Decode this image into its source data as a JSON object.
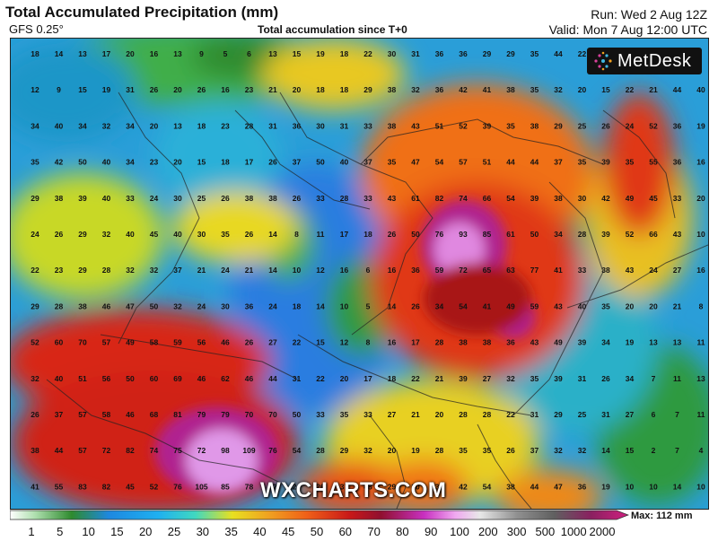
{
  "header": {
    "title": "Total Accumulated Precipitation (mm)",
    "model": "GFS 0.25°",
    "subtitle": "Total accumulation since T+0",
    "run": "Run: Wed 2 Aug 12Z",
    "valid": "Valid: Mon 7 Aug 12:00 UTC"
  },
  "logo": {
    "text": "MetDesk"
  },
  "watermark": "WXCHARTS.COM",
  "legend": {
    "ticks": [
      "1",
      "5",
      "10",
      "15",
      "20",
      "25",
      "30",
      "35",
      "40",
      "45",
      "50",
      "60",
      "70",
      "80",
      "90",
      "100",
      "200",
      "300",
      "500",
      "1000",
      "2000"
    ],
    "max_label": "Max: 112 mm"
  },
  "grid_values": [
    [
      "18",
      "14",
      "13",
      "17",
      "20",
      "16",
      "13",
      "9",
      "5",
      "6",
      "13",
      "15",
      "19",
      "18",
      "22",
      "30",
      "31",
      "36",
      "36",
      "29",
      "29",
      "35",
      "44",
      "22",
      "",
      "",
      ""
    ],
    [
      "12",
      "9",
      "15",
      "19",
      "31",
      "26",
      "20",
      "26",
      "16",
      "23",
      "21",
      "20",
      "18",
      "18",
      "29",
      "38",
      "32",
      "36",
      "42",
      "41",
      "38",
      "35",
      "32",
      "20",
      "15",
      "22",
      "21",
      "44",
      "40"
    ],
    [
      "34",
      "40",
      "34",
      "32",
      "34",
      "20",
      "13",
      "18",
      "23",
      "28",
      "31",
      "36",
      "30",
      "31",
      "33",
      "38",
      "43",
      "51",
      "52",
      "39",
      "35",
      "38",
      "29",
      "25",
      "26",
      "24",
      "52",
      "36",
      "19"
    ],
    [
      "35",
      "42",
      "50",
      "40",
      "34",
      "23",
      "20",
      "15",
      "18",
      "17",
      "26",
      "37",
      "50",
      "40",
      "37",
      "35",
      "47",
      "54",
      "57",
      "51",
      "44",
      "44",
      "37",
      "35",
      "39",
      "35",
      "55",
      "36",
      "16"
    ],
    [
      "29",
      "38",
      "39",
      "40",
      "33",
      "24",
      "30",
      "25",
      "26",
      "38",
      "38",
      "26",
      "33",
      "28",
      "33",
      "43",
      "61",
      "82",
      "74",
      "66",
      "54",
      "39",
      "38",
      "30",
      "42",
      "49",
      "45",
      "33",
      "20"
    ],
    [
      "24",
      "26",
      "29",
      "32",
      "40",
      "45",
      "40",
      "30",
      "35",
      "26",
      "14",
      "8",
      "11",
      "17",
      "18",
      "26",
      "50",
      "76",
      "93",
      "85",
      "61",
      "50",
      "34",
      "28",
      "39",
      "52",
      "66",
      "43",
      "10"
    ],
    [
      "22",
      "23",
      "29",
      "28",
      "32",
      "32",
      "37",
      "21",
      "24",
      "21",
      "14",
      "10",
      "12",
      "16",
      "6",
      "16",
      "36",
      "59",
      "72",
      "65",
      "63",
      "77",
      "41",
      "33",
      "38",
      "43",
      "24",
      "27",
      "16"
    ],
    [
      "29",
      "28",
      "38",
      "46",
      "47",
      "50",
      "32",
      "24",
      "30",
      "36",
      "24",
      "18",
      "14",
      "10",
      "5",
      "14",
      "26",
      "34",
      "54",
      "41",
      "49",
      "59",
      "43",
      "40",
      "35",
      "20",
      "20",
      "21",
      "8"
    ],
    [
      "52",
      "60",
      "70",
      "57",
      "49",
      "58",
      "59",
      "56",
      "46",
      "26",
      "27",
      "22",
      "15",
      "12",
      "8",
      "16",
      "17",
      "28",
      "38",
      "38",
      "36",
      "43",
      "49",
      "39",
      "34",
      "19",
      "13",
      "13",
      "11"
    ],
    [
      "32",
      "40",
      "51",
      "56",
      "50",
      "60",
      "69",
      "46",
      "62",
      "46",
      "44",
      "31",
      "22",
      "20",
      "17",
      "18",
      "22",
      "21",
      "39",
      "27",
      "32",
      "35",
      "39",
      "31",
      "26",
      "34",
      "7",
      "11",
      "13"
    ],
    [
      "26",
      "37",
      "57",
      "58",
      "46",
      "68",
      "81",
      "79",
      "79",
      "70",
      "70",
      "50",
      "33",
      "35",
      "33",
      "27",
      "21",
      "20",
      "28",
      "28",
      "22",
      "31",
      "29",
      "25",
      "31",
      "27",
      "6",
      "7",
      "11"
    ],
    [
      "38",
      "44",
      "57",
      "72",
      "82",
      "74",
      "75",
      "72",
      "98",
      "109",
      "76",
      "54",
      "28",
      "29",
      "32",
      "20",
      "19",
      "28",
      "35",
      "35",
      "26",
      "37",
      "32",
      "32",
      "14",
      "15",
      "2",
      "7",
      "4"
    ],
    [
      "41",
      "55",
      "83",
      "82",
      "45",
      "52",
      "76",
      "105",
      "85",
      "78",
      "52",
      "24",
      "26",
      "37",
      "48",
      "29",
      "20",
      "31",
      "42",
      "54",
      "38",
      "44",
      "47",
      "36",
      "19",
      "10",
      "10",
      "14",
      "10"
    ]
  ],
  "colors": {
    "low_blue": "#3c66e0",
    "green": "#2e8a2e",
    "yellow": "#e8e020",
    "orange": "#f07818",
    "red": "#c81818",
    "magenta": "#a020b0"
  }
}
